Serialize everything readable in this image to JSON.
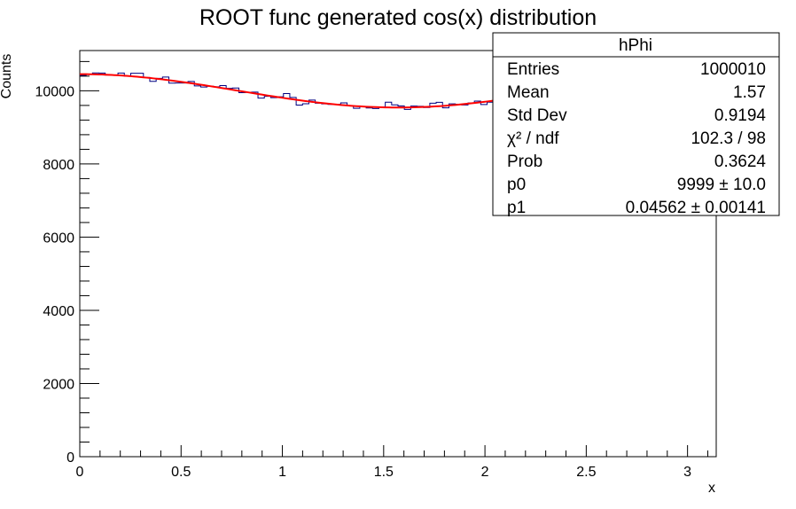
{
  "chart_data": {
    "type": "histogram",
    "title": "ROOT func generated cos(x) distribution",
    "xlabel": "x",
    "ylabel": "Counts",
    "xlim": [
      0,
      3.14159
    ],
    "ylim": [
      0,
      11100
    ],
    "xticks": [
      0,
      0.5,
      1,
      1.5,
      2,
      2.5,
      3
    ],
    "xtick_labels": [
      "0",
      "0.5",
      "1",
      "1.5",
      "2",
      "2.5",
      "3"
    ],
    "yticks": [
      0,
      2000,
      4000,
      6000,
      8000,
      10000
    ],
    "ytick_labels": [
      "0",
      "2000",
      "4000",
      "6000",
      "8000",
      "10000"
    ],
    "bins": 100,
    "series": [
      {
        "name": "hPhi",
        "kind": "histogram",
        "color": "#000080"
      },
      {
        "name": "fit",
        "kind": "function",
        "formula": "p0*(1+p1*cos(2x))",
        "color": "#ff0000"
      }
    ],
    "stats_box": {
      "title": "hPhi",
      "rows": [
        {
          "label": "Entries",
          "value": "1000010"
        },
        {
          "label": "Mean",
          "value": "1.57"
        },
        {
          "label": "Std Dev",
          "value": "0.9194"
        },
        {
          "label": "χ² / ndf",
          "value": "102.3 / 98"
        },
        {
          "label": "Prob",
          "value": "0.3624"
        },
        {
          "label": "p0",
          "value": "9999 ± 10.0"
        },
        {
          "label": "p1",
          "value": "0.04562 ± 0.00141"
        }
      ]
    },
    "fit_params": {
      "p0": 9999,
      "p1": 0.04562
    },
    "grid": false
  }
}
